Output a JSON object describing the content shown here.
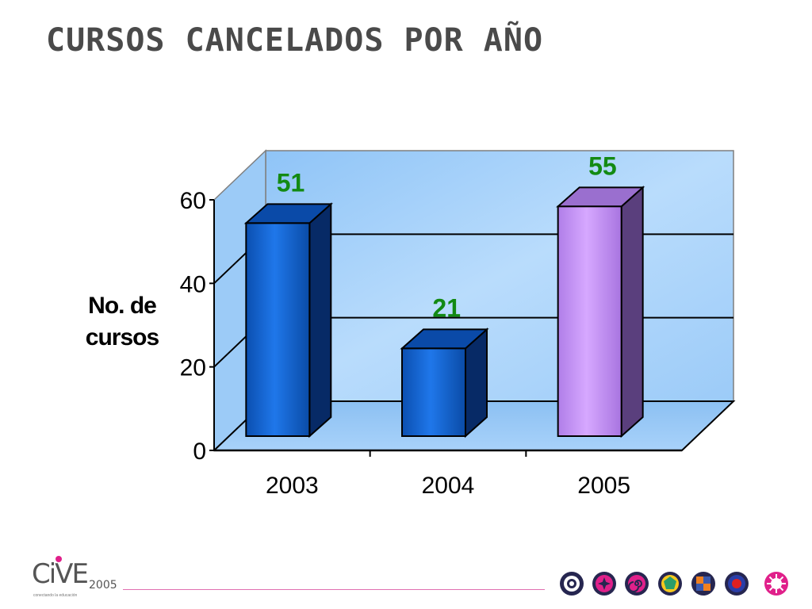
{
  "slide": {
    "title": "CURSOS CANCELADOS POR AÑO"
  },
  "chart_data": {
    "type": "bar",
    "style": "3d",
    "categories": [
      "2003",
      "2004",
      "2005"
    ],
    "values": [
      51,
      21,
      55
    ],
    "data_labels": [
      "51",
      "21",
      "55"
    ],
    "bar_colors": [
      "#0a5fd0",
      "#0a5fd0",
      "#cc99ff"
    ],
    "label_color": "#138a13",
    "ylabel_lines": [
      "No. de",
      "cursos"
    ],
    "xlabel": "",
    "ylim": [
      0,
      60
    ],
    "yticks": [
      0,
      20,
      40,
      60
    ],
    "grid": true,
    "legend": "none",
    "wall_color": "#a9d4fb"
  },
  "footer": {
    "logo_text": "CiVE",
    "logo_year": "2005",
    "logo_dot_color": "#e0208a",
    "logo_tagline": "conectando la educación",
    "line_color": "#e070b0",
    "badge_icons": [
      "target-icon",
      "star-cross-icon",
      "spiral-icon",
      "pentagon-icon",
      "checker-icon",
      "red-dot-icon",
      "sunburst-icon"
    ]
  }
}
